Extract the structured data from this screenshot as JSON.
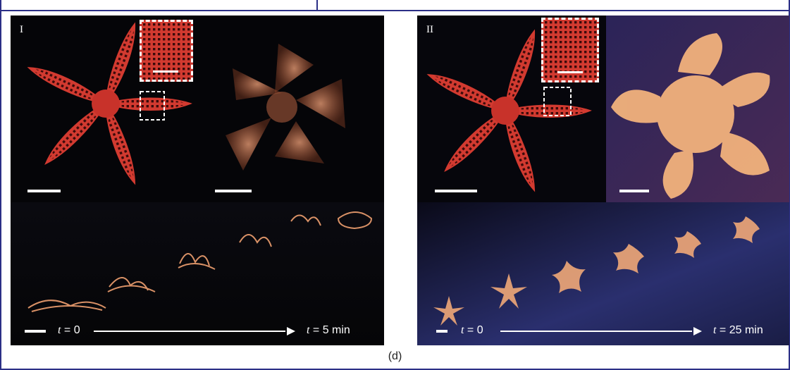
{
  "panels": [
    {
      "label": "I",
      "time_start_symbol": "t",
      "time_start_value": "= 0",
      "time_end_symbol": "t",
      "time_end_value": "= 5 min",
      "colors": {
        "printed_star": "#c9352c",
        "swollen": "#e8956a",
        "background": "#050508"
      }
    },
    {
      "label": "II",
      "time_start_symbol": "t",
      "time_start_value": "= 0",
      "time_end_symbol": "t",
      "time_end_value": "= 25 min",
      "colors": {
        "printed_star": "#c9352c",
        "swollen": "#f0b07a",
        "background": "#1a1a3a"
      }
    }
  ],
  "caption": "(d)"
}
